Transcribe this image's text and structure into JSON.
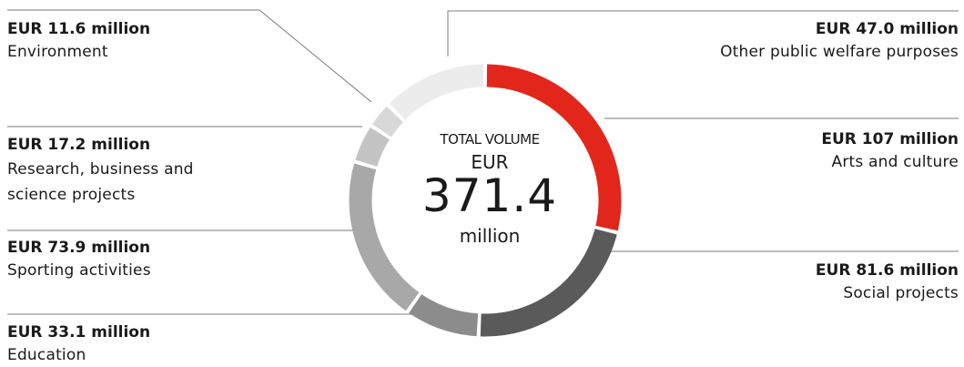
{
  "chart_data": {
    "type": "pie",
    "center": {
      "label": "TOTAL VOLUME",
      "currency": "EUR",
      "total": "371.4",
      "unit": "million"
    },
    "categories": [
      "Arts and culture",
      "Social projects",
      "Education",
      "Sporting activities",
      "Research, business and science projects",
      "Environment",
      "Other public welfare purposes"
    ],
    "values": [
      107,
      81.6,
      33.1,
      73.9,
      17.2,
      11.6,
      47.0
    ],
    "value_labels": [
      "EUR 107 million",
      "EUR 81.6 million",
      "EUR 33.1 million",
      "EUR 73.9 million",
      "EUR 17.2 million",
      "EUR 11.6 million",
      "EUR 47.0 million"
    ],
    "colors": [
      "#e3261b",
      "#5a5a5a",
      "#8c8c8c",
      "#a8a8a8",
      "#c4c4c4",
      "#d8d8d8",
      "#ececec"
    ],
    "label_lines": [
      "Research, business and science projects"
    ]
  }
}
